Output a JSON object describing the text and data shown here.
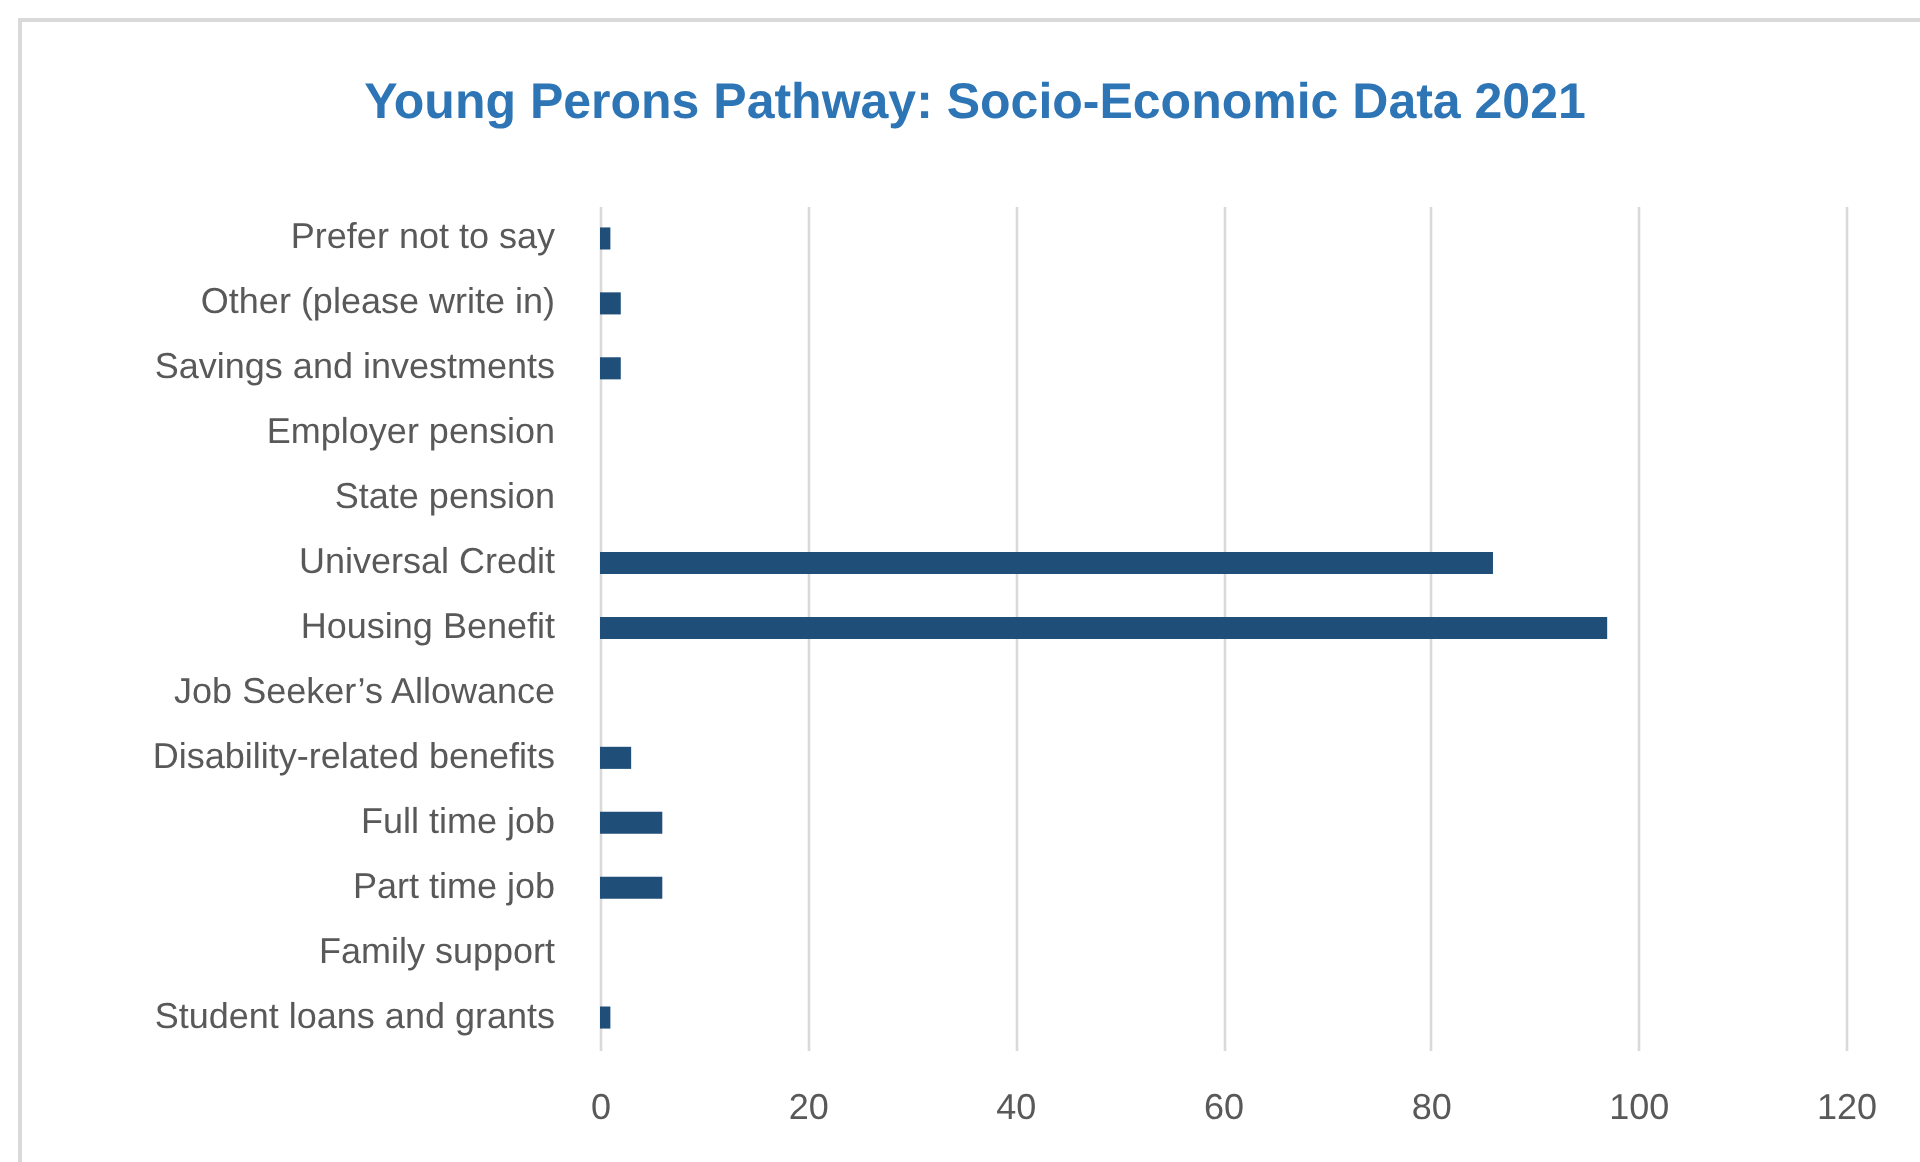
{
  "chart_data": {
    "type": "bar",
    "orientation": "horizontal",
    "title": "Young Perons Pathway: Socio-Economic Data 2021",
    "categories": [
      "Prefer not to say",
      "Other (please write in) ",
      "Savings and investments",
      "Employer pension",
      "State pension",
      "Universal Credit",
      "Housing Benefit",
      "Job Seeker’s Allowance",
      "Disability-related benefits",
      "Full time job",
      "Part time job",
      "Family support",
      "Student loans and grants"
    ],
    "values": [
      1,
      2,
      2,
      0,
      0,
      86,
      97,
      0,
      3,
      6,
      6,
      0,
      1
    ],
    "color": "#1f4e79",
    "xlim": [
      0,
      120
    ],
    "xticks": [
      0,
      20,
      40,
      60,
      80,
      100,
      120
    ],
    "grid": "x"
  }
}
